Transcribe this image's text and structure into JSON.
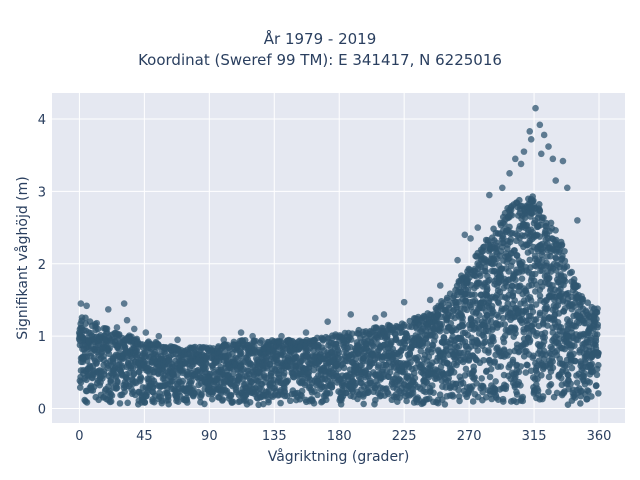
{
  "chart_data": {
    "type": "scatter",
    "title_lines": [
      "År 1979 - 2019",
      "Koordinat (Sweref 99 TM): E 341417, N 6225016"
    ],
    "xlabel": "Vågriktning (grader)",
    "ylabel": "Signifikant våghöjd (m)",
    "xlim": [
      -19,
      378
    ],
    "ylim": [
      -0.2,
      4.36
    ],
    "xticks": [
      0,
      45,
      90,
      135,
      180,
      225,
      270,
      315,
      360
    ],
    "xtick_labels": [
      "0",
      "45",
      "90",
      "135",
      "180",
      "225",
      "270",
      "315",
      "360"
    ],
    "yticks": [
      0,
      1,
      2,
      3,
      4
    ],
    "ytick_labels": [
      "0",
      "1",
      "2",
      "3",
      "4"
    ],
    "grid": true,
    "marker_color": "#2f5670",
    "background_color": "#e5e8f1",
    "envelope": {
      "direction_deg": [
        0,
        20,
        45,
        70,
        90,
        110,
        135,
        160,
        180,
        200,
        225,
        245,
        260,
        270,
        280,
        290,
        300,
        310,
        315,
        320,
        330,
        340,
        350,
        360
      ],
      "max_height_m": [
        1.3,
        1.1,
        0.95,
        0.85,
        0.85,
        0.95,
        0.95,
        0.95,
        1.05,
        1.1,
        1.2,
        1.35,
        1.7,
        2.0,
        2.3,
        2.6,
        2.85,
        2.95,
        2.95,
        2.8,
        2.5,
        2.0,
        1.5,
        1.35
      ],
      "min_height_m": 0.05
    },
    "outliers": [
      {
        "x": 316,
        "y": 4.15
      },
      {
        "x": 319,
        "y": 3.92
      },
      {
        "x": 312,
        "y": 3.83
      },
      {
        "x": 322,
        "y": 3.78
      },
      {
        "x": 313,
        "y": 3.72
      },
      {
        "x": 325,
        "y": 3.62
      },
      {
        "x": 308,
        "y": 3.55
      },
      {
        "x": 320,
        "y": 3.52
      },
      {
        "x": 302,
        "y": 3.45
      },
      {
        "x": 328,
        "y": 3.45
      },
      {
        "x": 335,
        "y": 3.42
      },
      {
        "x": 306,
        "y": 3.38
      },
      {
        "x": 298,
        "y": 3.25
      },
      {
        "x": 330,
        "y": 3.15
      },
      {
        "x": 293,
        "y": 3.05
      },
      {
        "x": 338,
        "y": 3.05
      },
      {
        "x": 284,
        "y": 2.95
      },
      {
        "x": 345,
        "y": 2.6
      },
      {
        "x": 276,
        "y": 2.5
      },
      {
        "x": 267,
        "y": 2.4
      },
      {
        "x": 271,
        "y": 2.35
      },
      {
        "x": 262,
        "y": 2.05
      },
      {
        "x": 250,
        "y": 1.7
      },
      {
        "x": 243,
        "y": 1.5
      },
      {
        "x": 225,
        "y": 1.47
      },
      {
        "x": 211,
        "y": 1.3
      },
      {
        "x": 205,
        "y": 1.25
      },
      {
        "x": 188,
        "y": 1.3
      },
      {
        "x": 172,
        "y": 1.2
      },
      {
        "x": 1,
        "y": 1.45
      },
      {
        "x": 5,
        "y": 1.42
      },
      {
        "x": 31,
        "y": 1.45
      },
      {
        "x": 20,
        "y": 1.37
      },
      {
        "x": 33,
        "y": 1.22
      },
      {
        "x": 12,
        "y": 1.18
      },
      {
        "x": 26,
        "y": 1.12
      },
      {
        "x": 38,
        "y": 1.1
      },
      {
        "x": 46,
        "y": 1.05
      },
      {
        "x": 55,
        "y": 1.0
      },
      {
        "x": 68,
        "y": 0.95
      },
      {
        "x": 100,
        "y": 0.95
      },
      {
        "x": 112,
        "y": 1.05
      },
      {
        "x": 120,
        "y": 1.0
      },
      {
        "x": 140,
        "y": 1.0
      },
      {
        "x": 157,
        "y": 1.05
      },
      {
        "x": 348,
        "y": 1.55
      },
      {
        "x": 355,
        "y": 1.4
      },
      {
        "x": 359,
        "y": 1.38
      },
      {
        "x": 351,
        "y": 1.35
      }
    ]
  }
}
